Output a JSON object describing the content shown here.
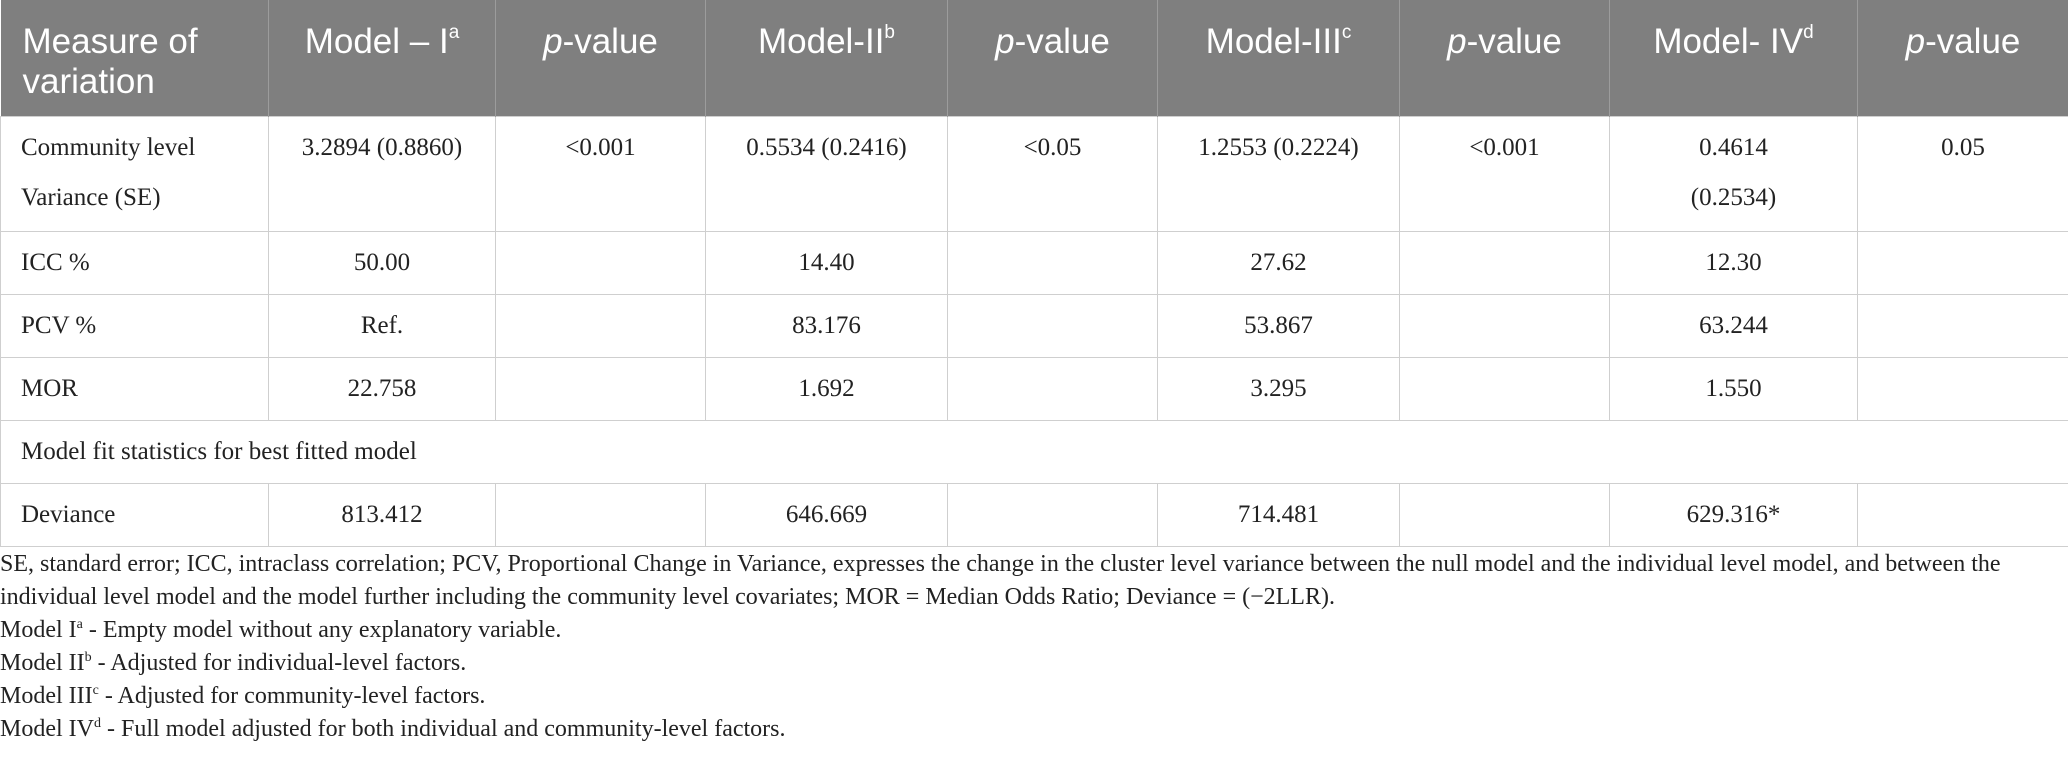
{
  "table": {
    "header": {
      "measure": "Measure of variation",
      "m1": "Model – I",
      "m1_sup": "a",
      "p": "p",
      "p_suffix": "-value",
      "m2": "Model-II",
      "m2_sup": "b",
      "m3": "Model-III",
      "m3_sup": "c",
      "m4": "Model- IV",
      "m4_sup": "d"
    },
    "rows": [
      {
        "label_line1": "Community level",
        "label_line2": "Variance (SE)",
        "m1": "3.2894 (0.8860)",
        "p1": "<0.001",
        "m2": "0.5534 (0.2416)",
        "p2": "<0.05",
        "m3": "1.2553 (0.2224)",
        "p3": "<0.001",
        "m4_line1": "0.4614",
        "m4_line2": "(0.2534)",
        "p4": "0.05"
      },
      {
        "label": "ICC %",
        "m1": "50.00",
        "p1": "",
        "m2": "14.40",
        "p2": "",
        "m3": "27.62",
        "p3": "",
        "m4": "12.30",
        "p4": ""
      },
      {
        "label": "PCV %",
        "m1": "Ref.",
        "p1": "",
        "m2": "83.176",
        "p2": "",
        "m3": "53.867",
        "p3": "",
        "m4": "63.244",
        "p4": ""
      },
      {
        "label": "MOR",
        "m1": "22.758",
        "p1": "",
        "m2": "1.692",
        "p2": "",
        "m3": "3.295",
        "p3": "",
        "m4": "1.550",
        "p4": ""
      },
      {
        "span": "Model fit statistics for best fitted model"
      },
      {
        "label": "Deviance",
        "m1": "813.412",
        "p1": "",
        "m2": "646.669",
        "p2": "",
        "m3": "714.481",
        "p3": "",
        "m4": "629.316*",
        "p4": ""
      }
    ]
  },
  "notes": {
    "abbrev": "SE, standard error; ICC, intraclass correlation; PCV, Proportional Change in Variance, expresses the change in the cluster level variance between the null model and the individual level model, and between the individual level model and the model further including the community level covariates; MOR = Median Odds Ratio; Deviance = (−2LLR).",
    "n1_pre": "Model I",
    "n1_sup": "a",
    "n1_text": " - Empty model without any explanatory variable.",
    "n2_pre": "Model II",
    "n2_sup": "b",
    "n2_text": " - Adjusted for individual-level factors.",
    "n3_pre": "Model III",
    "n3_sup": "c",
    "n3_text": " - Adjusted for community-level factors.",
    "n4_pre": "Model IV",
    "n4_sup": "d",
    "n4_text": " - Full model adjusted for both individual and community-level factors."
  }
}
